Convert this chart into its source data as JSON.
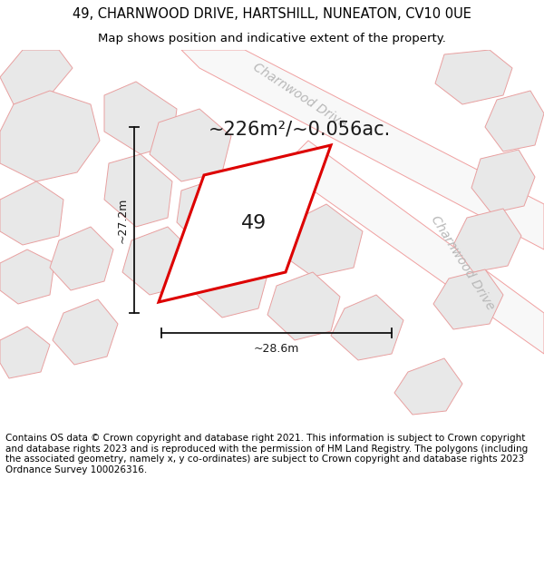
{
  "title_line1": "49, CHARNWOOD DRIVE, HARTSHILL, NUNEATON, CV10 0UE",
  "title_line2": "Map shows position and indicative extent of the property.",
  "area_text": "~226m²/~0.056ac.",
  "number_label": "49",
  "width_label": "~28.6m",
  "height_label": "~27.2m",
  "footer_text": "Contains OS data © Crown copyright and database right 2021. This information is subject to Crown copyright and database rights 2023 and is reproduced with the permission of HM Land Registry. The polygons (including the associated geometry, namely x, y co-ordinates) are subject to Crown copyright and database rights 2023 Ordnance Survey 100026316.",
  "bg_color": "#ffffff",
  "map_bg": "#f5f5f5",
  "road_color": "#f0a0a0",
  "road_fill": "#f5f5f5",
  "plot_outline_color": "#dd0000",
  "dim_line_color": "#111111",
  "parcel_fill": "#e8e8e8",
  "parcel_edge": "#e8a0a0",
  "road_label_color": "#b8b8b8",
  "title_fontsize": 10.5,
  "subtitle_fontsize": 9.5,
  "area_fontsize": 15,
  "number_fontsize": 16,
  "dim_fontsize": 9,
  "footer_fontsize": 7.5,
  "road_label_fontsize": 10
}
